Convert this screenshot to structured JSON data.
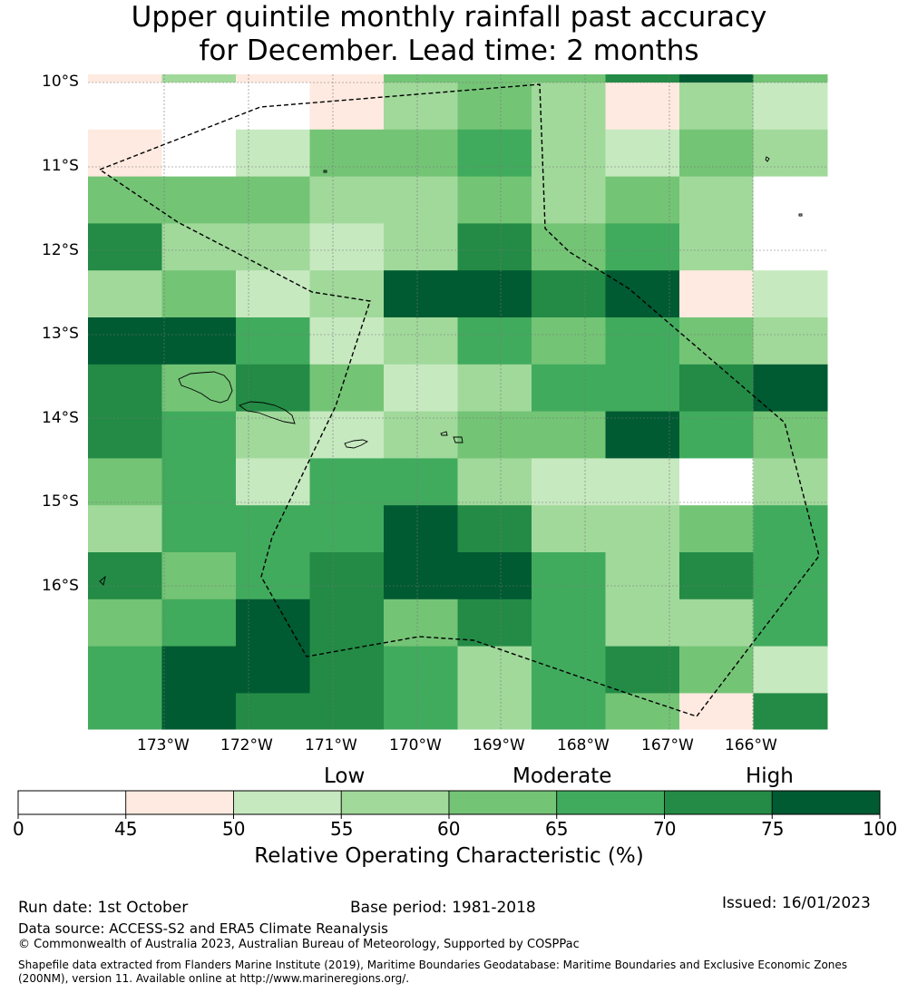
{
  "title_line1": "Upper quintile monthly rainfall past accuracy",
  "title_line2": "for December. Lead time: 2 months",
  "map": {
    "lat_labels": [
      "10°S",
      "11°S",
      "12°S",
      "13°S",
      "14°S",
      "15°S",
      "16°S"
    ],
    "lon_labels": [
      "173°W",
      "172°W",
      "171°W",
      "170°W",
      "169°W",
      "168°W",
      "167°W",
      "166°W"
    ],
    "grid_roc_values": [
      [
        47,
        55,
        47,
        47,
        60,
        62,
        60,
        72,
        77,
        62
      ],
      [
        0,
        0,
        0,
        47,
        57,
        62,
        57,
        47,
        57,
        52
      ],
      [
        47,
        0,
        52,
        62,
        62,
        67,
        57,
        52,
        62,
        57
      ],
      [
        62,
        62,
        62,
        57,
        57,
        62,
        57,
        62,
        57,
        0
      ],
      [
        72,
        57,
        57,
        52,
        57,
        72,
        62,
        67,
        57,
        0
      ],
      [
        57,
        62,
        52,
        57,
        77,
        77,
        72,
        77,
        47,
        52
      ],
      [
        77,
        77,
        67,
        52,
        57,
        67,
        62,
        67,
        62,
        57
      ],
      [
        72,
        62,
        72,
        62,
        52,
        57,
        67,
        67,
        72,
        77
      ],
      [
        72,
        67,
        57,
        52,
        57,
        62,
        62,
        77,
        67,
        62
      ],
      [
        62,
        67,
        52,
        67,
        67,
        57,
        52,
        52,
        0,
        57
      ],
      [
        57,
        67,
        67,
        67,
        77,
        72,
        57,
        57,
        62,
        67
      ],
      [
        72,
        62,
        67,
        72,
        77,
        77,
        67,
        57,
        72,
        67
      ],
      [
        62,
        67,
        77,
        72,
        62,
        72,
        67,
        57,
        57,
        67
      ],
      [
        67,
        77,
        77,
        72,
        67,
        57,
        67,
        72,
        62,
        52
      ],
      [
        67,
        77,
        72,
        72,
        67,
        57,
        67,
        62,
        47,
        72
      ]
    ]
  },
  "colorbar": {
    "category_labels": [
      "Low",
      "Moderate",
      "High"
    ],
    "tick_labels": [
      "0",
      "45",
      "50",
      "55",
      "60",
      "65",
      "70",
      "75",
      "100"
    ],
    "bounds": [
      0,
      45,
      50,
      55,
      60,
      65,
      70,
      75,
      100
    ],
    "colors": [
      "#ffffff",
      "#feeae0",
      "#c7e9c0",
      "#a1d99b",
      "#74c476",
      "#41ab5d",
      "#238b45",
      "#005a32"
    ],
    "title": "Relative Operating Characteristic (%)"
  },
  "footer": {
    "run_date": "Run date: 1st October",
    "base_period": "Base period: 1981-2018",
    "issued": "Issued: 16/01/2023",
    "data_source": "Data source: ACCESS-S2 and ERA5 Climate Reanalysis",
    "copyright": "© Commonwealth of Australia 2023, Australian Bureau of Meteorology, Supported by COSPPac",
    "shapefile_line1": "Shapefile data extracted from Flanders Marine Institute (2019), Maritime Boundaries Geodatabase: Maritime Boundaries and Exclusive Economic Zones",
    "shapefile_line2": "(200NM), version 11. Available online at http://www.marineregions.org/."
  }
}
